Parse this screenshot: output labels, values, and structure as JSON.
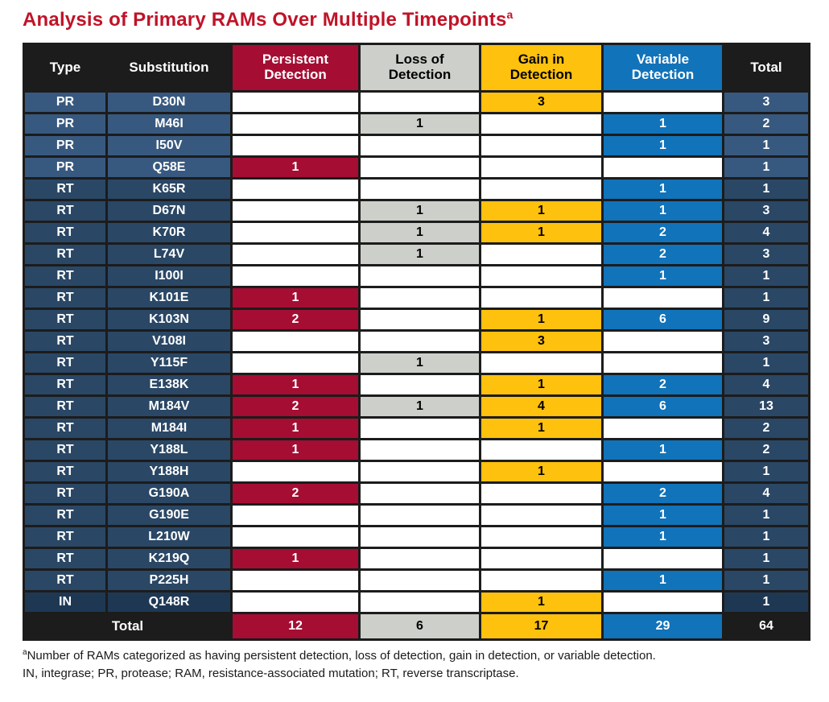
{
  "title": {
    "text": "Analysis of Primary RAMs Over Multiple Timepoints",
    "superscript": "a"
  },
  "colors": {
    "title_red": "#C01328",
    "table_black": "#1C1C1C",
    "persistent_red": "#A50D33",
    "loss_gray": "#CDD0CA",
    "gain_orange": "#FEC10D",
    "variable_blue": "#1173B9",
    "pr_row_blue": "#38597F",
    "rt_row_blue": "#2A4765",
    "in_row_blue": "#1E3854"
  },
  "table": {
    "headers": [
      "Type",
      "Substitution",
      "Persistent Detection",
      "Loss of Detection",
      "Gain in Detection",
      "Variable Detection",
      "Total"
    ],
    "rows": [
      {
        "type": "PR",
        "substitution": "D30N",
        "persistent": "",
        "loss": "",
        "gain": "3",
        "variable": "",
        "total": "3"
      },
      {
        "type": "PR",
        "substitution": "M46I",
        "persistent": "",
        "loss": "1",
        "gain": "",
        "variable": "1",
        "total": "2"
      },
      {
        "type": "PR",
        "substitution": "I50V",
        "persistent": "",
        "loss": "",
        "gain": "",
        "variable": "1",
        "total": "1"
      },
      {
        "type": "PR",
        "substitution": "Q58E",
        "persistent": "1",
        "loss": "",
        "gain": "",
        "variable": "",
        "total": "1"
      },
      {
        "type": "RT",
        "substitution": "K65R",
        "persistent": "",
        "loss": "",
        "gain": "",
        "variable": "1",
        "total": "1"
      },
      {
        "type": "RT",
        "substitution": "D67N",
        "persistent": "",
        "loss": "1",
        "gain": "1",
        "variable": "1",
        "total": "3"
      },
      {
        "type": "RT",
        "substitution": "K70R",
        "persistent": "",
        "loss": "1",
        "gain": "1",
        "variable": "2",
        "total": "4"
      },
      {
        "type": "RT",
        "substitution": "L74V",
        "persistent": "",
        "loss": "1",
        "gain": "",
        "variable": "2",
        "total": "3"
      },
      {
        "type": "RT",
        "substitution": "I100I",
        "persistent": "",
        "loss": "",
        "gain": "",
        "variable": "1",
        "total": "1"
      },
      {
        "type": "RT",
        "substitution": "K101E",
        "persistent": "1",
        "loss": "",
        "gain": "",
        "variable": "",
        "total": "1"
      },
      {
        "type": "RT",
        "substitution": "K103N",
        "persistent": "2",
        "loss": "",
        "gain": "1",
        "variable": "6",
        "total": "9"
      },
      {
        "type": "RT",
        "substitution": "V108I",
        "persistent": "",
        "loss": "",
        "gain": "3",
        "variable": "",
        "total": "3"
      },
      {
        "type": "RT",
        "substitution": "Y115F",
        "persistent": "",
        "loss": "1",
        "gain": "",
        "variable": "",
        "total": "1"
      },
      {
        "type": "RT",
        "substitution": "E138K",
        "persistent": "1",
        "loss": "",
        "gain": "1",
        "variable": "2",
        "total": "4"
      },
      {
        "type": "RT",
        "substitution": "M184V",
        "persistent": "2",
        "loss": "1",
        "gain": "4",
        "variable": "6",
        "total": "13"
      },
      {
        "type": "RT",
        "substitution": "M184I",
        "persistent": "1",
        "loss": "",
        "gain": "1",
        "variable": "",
        "total": "2"
      },
      {
        "type": "RT",
        "substitution": "Y188L",
        "persistent": "1",
        "loss": "",
        "gain": "",
        "variable": "1",
        "total": "2"
      },
      {
        "type": "RT",
        "substitution": "Y188H",
        "persistent": "",
        "loss": "",
        "gain": "1",
        "variable": "",
        "total": "1"
      },
      {
        "type": "RT",
        "substitution": "G190A",
        "persistent": "2",
        "loss": "",
        "gain": "",
        "variable": "2",
        "total": "4"
      },
      {
        "type": "RT",
        "substitution": "G190E",
        "persistent": "",
        "loss": "",
        "gain": "",
        "variable": "1",
        "total": "1"
      },
      {
        "type": "RT",
        "substitution": "L210W",
        "persistent": "",
        "loss": "",
        "gain": "",
        "variable": "1",
        "total": "1"
      },
      {
        "type": "RT",
        "substitution": "K219Q",
        "persistent": "1",
        "loss": "",
        "gain": "",
        "variable": "",
        "total": "1"
      },
      {
        "type": "RT",
        "substitution": "P225H",
        "persistent": "",
        "loss": "",
        "gain": "",
        "variable": "1",
        "total": "1"
      },
      {
        "type": "IN",
        "substitution": "Q148R",
        "persistent": "",
        "loss": "",
        "gain": "1",
        "variable": "",
        "total": "1"
      }
    ],
    "total_row": {
      "label": "Total",
      "persistent": "12",
      "loss": "6",
      "gain": "17",
      "variable": "29",
      "total": "64"
    }
  },
  "footnote": {
    "marker": "a",
    "line1": "Number of RAMs categorized as having persistent detection, loss of detection, gain in detection, or variable detection.",
    "line2": "IN, integrase; PR, protease; RAM, resistance-associated mutation; RT, reverse transcriptase."
  }
}
